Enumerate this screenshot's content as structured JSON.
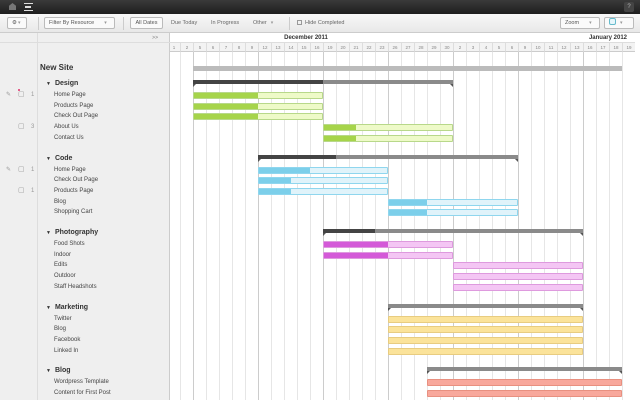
{
  "topbar": {
    "home_icon": "home-icon",
    "menu_icon": "gantt-menu-icon",
    "help_label": "?"
  },
  "toolbar": {
    "settings_icon": "gear-icon",
    "filter_label": "Filter By Resource",
    "all_dates": "All Dates",
    "due_today": "Due Today",
    "in_progress": "In Progress",
    "other": "Other",
    "hide_completed": "Hide Completed",
    "zoom": "Zoom",
    "color_icon": "color-swatch-icon"
  },
  "left_header": ">>",
  "months": [
    {
      "label": "December 2011",
      "start": 0,
      "count": 22
    },
    {
      "label": "January 2012",
      "start": 22,
      "count": 14
    }
  ],
  "days": [
    "Dec 1",
    "Dec 2",
    "Dec 5",
    "Dec 6",
    "Dec 7",
    "Dec 8",
    "Dec 9",
    "Dec 12",
    "Dec 13",
    "Dec 14",
    "Dec 15",
    "Dec 16",
    "Dec 19",
    "Dec 20",
    "Dec 21",
    "Dec 22",
    "Dec 23",
    "Dec 26",
    "Dec 27",
    "Dec 28",
    "Dec 29",
    "Dec 30",
    "Jan 2",
    "Jan 3",
    "Jan 4",
    "Jan 5",
    "Jan 6",
    "Jan 9",
    "Jan 10",
    "Jan 11",
    "Jan 12",
    "Jan 13",
    "Jan 16",
    "Jan 17",
    "Jan 18",
    "Jan 19"
  ],
  "project": {
    "name": "New Site",
    "start": "Dec 5",
    "end": "Jan 18"
  },
  "groups": [
    {
      "name": "Design",
      "start": "Dec 5",
      "end": "Dec 30",
      "progress": 50,
      "color": "#a6d44a",
      "light": "#eefac8",
      "border": "#b8d88a",
      "tasks": [
        {
          "name": "Home Page",
          "start": "Dec 5",
          "end": "Dec 16",
          "progress": 50,
          "attach": true,
          "comments": "1",
          "new_comment": true
        },
        {
          "name": "Products Page",
          "start": "Dec 5",
          "end": "Dec 16",
          "progress": 50
        },
        {
          "name": "Check Out Page",
          "start": "Dec 5",
          "end": "Dec 16",
          "progress": 50
        },
        {
          "name": "About Us",
          "start": "Dec 19",
          "end": "Dec 30",
          "progress": 25,
          "comments": "3"
        },
        {
          "name": "Contact Us",
          "start": "Dec 19",
          "end": "Dec 30",
          "progress": 25
        }
      ]
    },
    {
      "name": "Code",
      "start": "Dec 12",
      "end": "Jan 6",
      "progress": 30,
      "color": "#7ccfea",
      "light": "#e0f3fa",
      "border": "#8fd6ee",
      "tasks": [
        {
          "name": "Home Page",
          "start": "Dec 12",
          "end": "Dec 23",
          "progress": 40,
          "attach": true,
          "comments": "1"
        },
        {
          "name": "Check Out Page",
          "start": "Dec 12",
          "end": "Dec 23",
          "progress": 25
        },
        {
          "name": "Products Page",
          "start": "Dec 12",
          "end": "Dec 23",
          "progress": 25,
          "comments": "1"
        },
        {
          "name": "Blog",
          "start": "Dec 26",
          "end": "Jan 6",
          "progress": 30
        },
        {
          "name": "Shopping Cart",
          "start": "Dec 26",
          "end": "Jan 6",
          "progress": 30
        }
      ]
    },
    {
      "name": "Photography",
      "start": "Dec 19",
      "end": "Jan 13",
      "progress": 20,
      "color": "#d45ad8",
      "light": "#f4c6f4",
      "border": "#de9ade",
      "tasks": [
        {
          "name": "Food Shots",
          "start": "Dec 19",
          "end": "Dec 30",
          "progress": 50
        },
        {
          "name": "Indoor",
          "start": "Dec 19",
          "end": "Dec 30",
          "progress": 50
        },
        {
          "name": "Edits",
          "start": "Jan 2",
          "end": "Jan 13",
          "progress": 0
        },
        {
          "name": "Outdoor",
          "start": "Jan 2",
          "end": "Jan 13",
          "progress": 0
        },
        {
          "name": "Staff Headshots",
          "start": "Jan 2",
          "end": "Jan 13",
          "progress": 0
        }
      ]
    },
    {
      "name": "Marketing",
      "start": "Dec 26",
      "end": "Jan 13",
      "progress": 0,
      "color": "#f2c24a",
      "light": "#fbe39a",
      "border": "#e8cc80",
      "tasks": [
        {
          "name": "Twitter",
          "start": "Dec 26",
          "end": "Jan 13",
          "progress": 0
        },
        {
          "name": "Blog",
          "start": "Dec 26",
          "end": "Jan 13",
          "progress": 0
        },
        {
          "name": "Facebook",
          "start": "Dec 26",
          "end": "Jan 13",
          "progress": 0
        },
        {
          "name": "Linked In",
          "start": "Dec 26",
          "end": "Jan 13",
          "progress": 0
        }
      ]
    },
    {
      "name": "Blog",
      "start": "Dec 29",
      "end": "Jan 18",
      "progress": 0,
      "color": "#f07a6a",
      "light": "#f8a89c",
      "border": "#e89080",
      "tasks": [
        {
          "name": "Wordpress Template",
          "start": "Dec 29",
          "end": "Jan 18",
          "progress": 0
        },
        {
          "name": "Content for First Post",
          "start": "Dec 29",
          "end": "Jan 18",
          "progress": 0
        }
      ]
    }
  ]
}
